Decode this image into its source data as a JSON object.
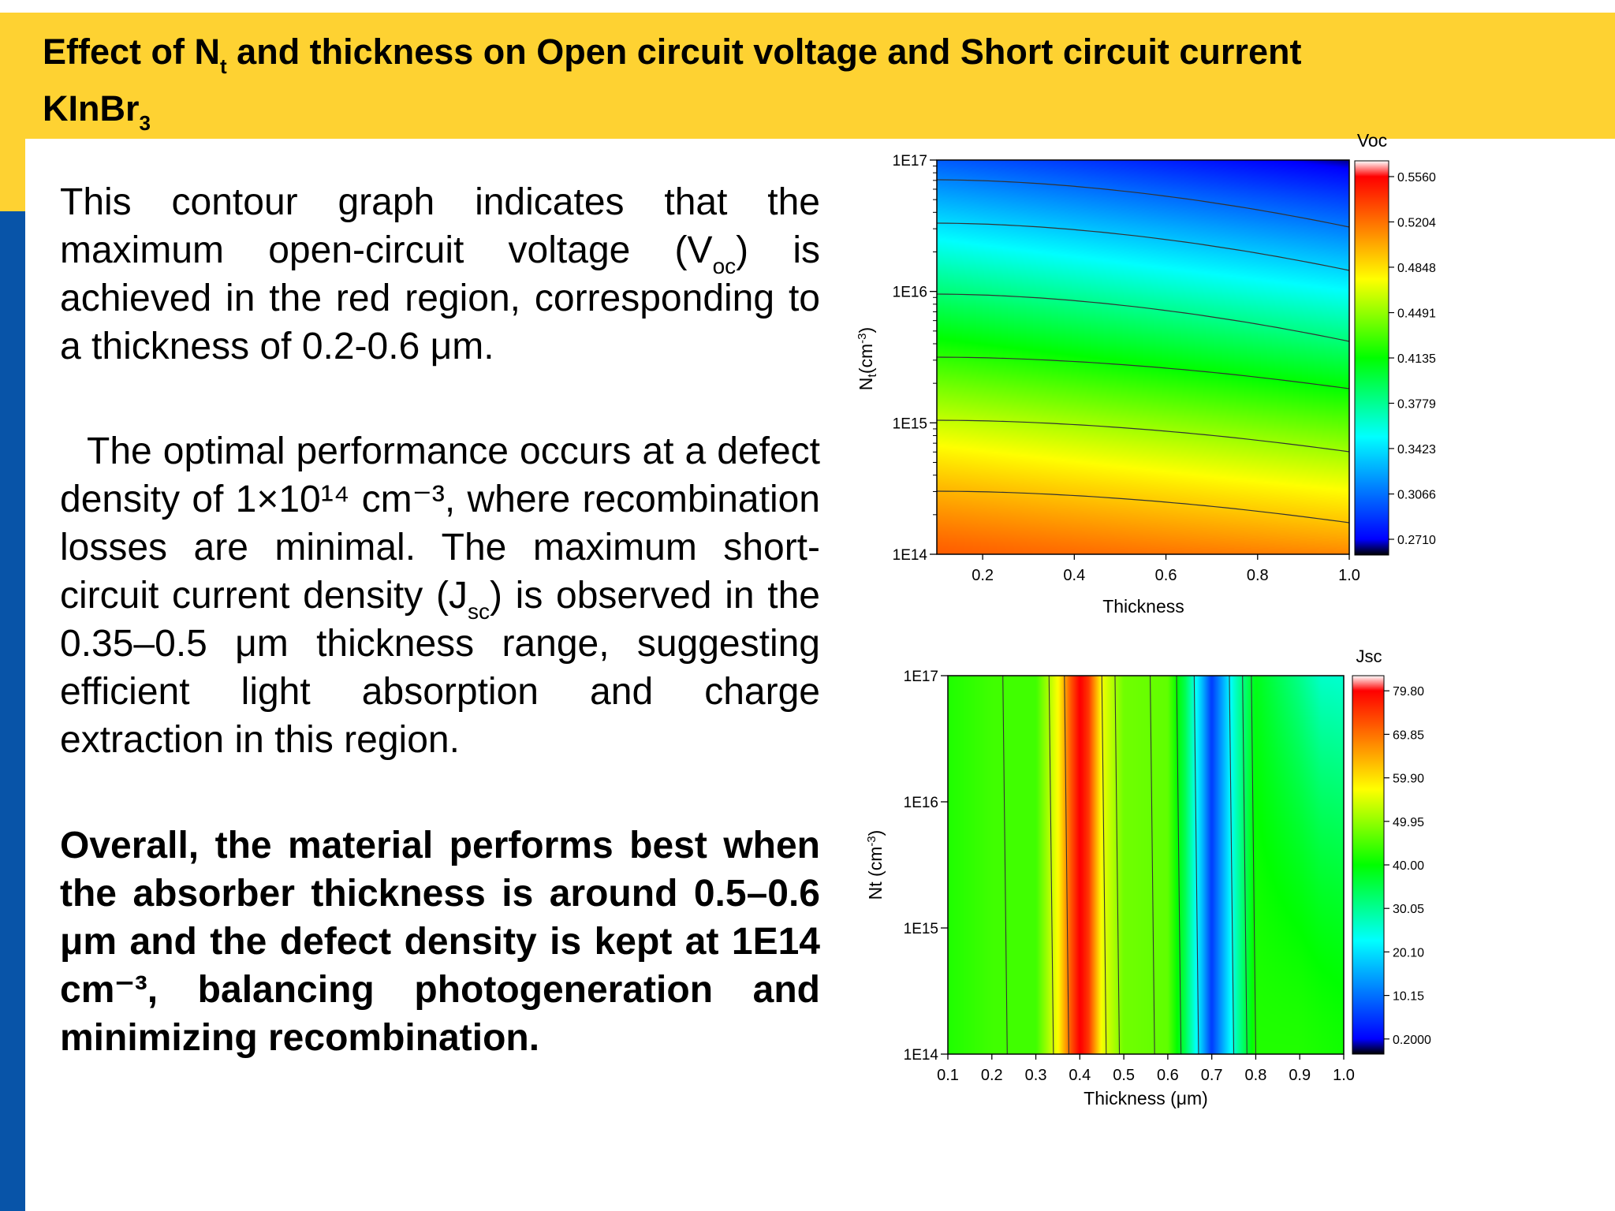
{
  "header": {
    "title_a": "Effect of N",
    "title_sub": "t",
    "title_b": " and thickness on Open circuit voltage and Short circuit current",
    "title_line2_a": "KInBr",
    "title_line2_sub": "3"
  },
  "body": {
    "p1_a": "This contour graph indicates that the maximum open-circuit voltage (V",
    "p1_sub": "oc",
    "p1_b": ")  is achieved in the red region, corresponding to a thickness of 0.2-0.6 μm.",
    "p2_a": "The optimal performance occurs at a defect density of 1×10¹⁴ cm⁻³, where recombination losses are minimal. The maximum short-circuit current density (J",
    "p2_sub": "sc",
    "p2_b": ") is observed in the 0.35–0.5 μm thickness range, suggesting efficient light absorption and charge extraction in this region.",
    "p3": "Overall, the material performs best when the absorber thickness is around 0.5–0.6 μm and the defect density is kept at 1E14 cm⁻³, balancing photogeneration and minimizing recombination."
  },
  "chart_data": [
    {
      "type": "heatmap",
      "title": "Voc",
      "xlabel": "Thickness",
      "ylabel_a": "N",
      "ylabel_sub": "t",
      "ylabel_b": "(cm",
      "ylabel_sup": "-3",
      "ylabel_c": ")",
      "xlim": [
        0.1,
        1.0
      ],
      "xticks": [
        0.2,
        0.4,
        0.6,
        0.8,
        1.0
      ],
      "xtick_labels": [
        "0.2",
        "0.4",
        "0.6",
        "0.8",
        "1.0"
      ],
      "yscale": "log",
      "ylim": [
        100000000000000.0,
        1e+17
      ],
      "ytick_labels": [
        "1E14",
        "1E15",
        "1E16",
        "1E17"
      ],
      "colorbar": {
        "levels": [
          0.271,
          0.3066,
          0.3423,
          0.3779,
          0.4135,
          0.4491,
          0.4848,
          0.5204,
          0.556
        ],
        "labels": [
          "0.2710",
          "0.3066",
          "0.3423",
          "0.3779",
          "0.4135",
          "0.4491",
          "0.4848",
          "0.5204",
          "0.5560"
        ]
      },
      "colors": [
        "#000000",
        "#0000ff",
        "#00ffff",
        "#00ff00",
        "#ffff00",
        "#ff0000",
        "#ffffff"
      ],
      "contour_levels": [
        0.3423,
        0.3779,
        0.4135,
        0.4491,
        0.4848,
        0.5204
      ],
      "approx_range": {
        "min": 0.33,
        "max": 0.525
      }
    },
    {
      "type": "heatmap",
      "title": "Jsc",
      "xlabel": "Thickness (μm)",
      "ylabel": "Nt (cm",
      "ylabel_sup": "-3",
      "ylabel_c": ")",
      "xlim": [
        0.1,
        1.0
      ],
      "xticks": [
        0.1,
        0.2,
        0.3,
        0.4,
        0.5,
        0.6,
        0.7,
        0.8,
        0.9,
        1.0
      ],
      "xtick_labels": [
        "0.1",
        "0.2",
        "0.3",
        "0.4",
        "0.5",
        "0.6",
        "0.7",
        "0.8",
        "0.9",
        "1.0"
      ],
      "yscale": "log",
      "ylim": [
        100000000000000.0,
        1e+17
      ],
      "ytick_labels": [
        "1E14",
        "1E15",
        "1E16",
        "1E17"
      ],
      "colorbar": {
        "levels": [
          0.2,
          10.15,
          20.1,
          30.05,
          40.0,
          49.95,
          59.9,
          69.85,
          79.8
        ],
        "labels": [
          "0.2000",
          "10.15",
          "20.10",
          "30.05",
          "40.00",
          "49.95",
          "59.90",
          "69.85",
          "79.80"
        ]
      },
      "colors": [
        "#000000",
        "#0000ff",
        "#00ffff",
        "#00ff00",
        "#ffff00",
        "#ff0000",
        "#ffffff"
      ],
      "profile_at_1E14": {
        "thickness": [
          0.1,
          0.2,
          0.3,
          0.35,
          0.38,
          0.4,
          0.42,
          0.45,
          0.5,
          0.6,
          0.64,
          0.68,
          0.7,
          0.72,
          0.76,
          0.8,
          0.9,
          1.0
        ],
        "jsc": [
          42,
          44,
          44,
          56,
          70,
          77,
          72,
          55,
          47,
          46,
          35,
          18,
          8,
          15,
          30,
          42,
          42,
          41
        ]
      }
    }
  ]
}
